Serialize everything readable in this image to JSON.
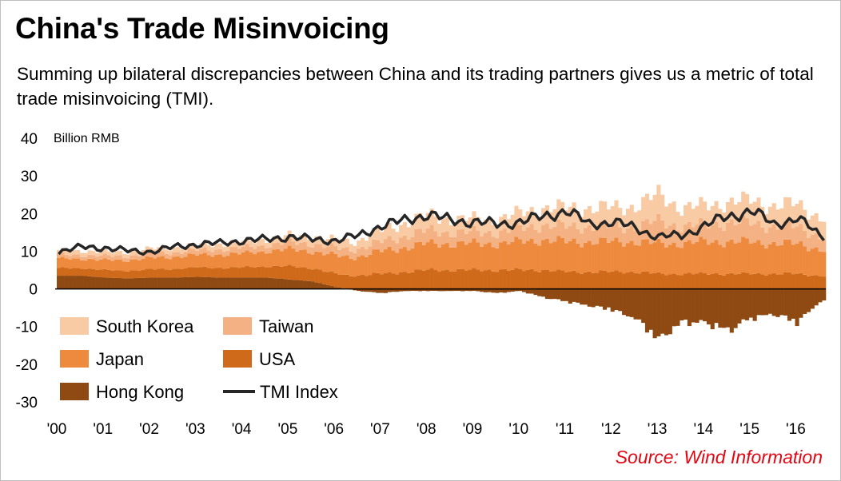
{
  "header": {
    "title": "China's Trade Misinvoicing",
    "subtitle": "Summing up bilateral discrepancies between China and its trading partners gives us a metric of total trade misinvoicing (TMI)."
  },
  "source": "Source: Wind Information",
  "colors": {
    "south_korea": "#f8cba5",
    "taiwan": "#f4b183",
    "japan": "#ed8a3d",
    "usa": "#cf6a1a",
    "hong_kong": "#8e4a12",
    "tmi": "#262626",
    "source": "#e30613"
  },
  "chart_data": {
    "type": "bar",
    "stacked": true,
    "unit_label": "Billion RMB",
    "ylim": [
      -30,
      40
    ],
    "yticks": [
      40,
      30,
      20,
      10,
      0,
      -10,
      -20,
      -30
    ],
    "x_tick_labels": [
      "'00",
      "'01",
      "'02",
      "'03",
      "'04",
      "'05",
      "'06",
      "'07",
      "'08",
      "'09",
      "'10",
      "'11",
      "'12",
      "'13",
      "'14",
      "'15",
      "'16"
    ],
    "legend_position": "lower-left",
    "x": [
      "2000",
      "2000.5",
      "2001",
      "2001.5",
      "2002",
      "2002.5",
      "2003",
      "2003.5",
      "2004",
      "2004.5",
      "2005",
      "2005.5",
      "2006",
      "2006.5",
      "2007",
      "2007.5",
      "2008",
      "2008.5",
      "2009",
      "2009.5",
      "2010",
      "2010.5",
      "2011",
      "2011.5",
      "2012",
      "2012.5",
      "2013",
      "2013.5",
      "2014",
      "2014.5",
      "2015",
      "2015.5",
      "2016",
      "2016.5"
    ],
    "series": [
      {
        "name": "South Korea",
        "values": [
          1,
          1.2,
          1,
          1.1,
          1.2,
          1.3,
          1.3,
          1.5,
          1.5,
          1.6,
          1.8,
          2,
          2,
          2.2,
          3,
          3.5,
          4,
          3.5,
          3.5,
          3.5,
          4,
          4.5,
          5,
          5,
          5,
          5.5,
          7,
          5,
          5,
          5.5,
          6,
          5.5,
          6,
          5
        ]
      },
      {
        "name": "Taiwan",
        "values": [
          1,
          1,
          1.1,
          1.1,
          1.2,
          1.2,
          1.3,
          1.4,
          1.5,
          1.6,
          1.8,
          2,
          2,
          2.1,
          2.5,
          3,
          3.5,
          3,
          3,
          3,
          3.5,
          4,
          4,
          4,
          4,
          4,
          6,
          4.5,
          4.5,
          5,
          5,
          4.5,
          4.5,
          3.5
        ]
      },
      {
        "name": "Japan",
        "values": [
          2.5,
          2.5,
          2.6,
          2.8,
          3,
          3.2,
          3.3,
          3.5,
          3.7,
          4,
          4.5,
          4.5,
          4.8,
          5,
          6,
          6.5,
          7,
          7,
          7,
          7,
          7.5,
          8,
          8,
          8,
          8,
          8,
          8,
          8,
          8.5,
          8.5,
          8.5,
          8,
          8,
          7
        ]
      },
      {
        "name": "USA",
        "values": [
          2,
          2,
          2,
          2,
          2.2,
          2.3,
          2.5,
          2.6,
          2.7,
          3,
          3.5,
          3.5,
          3.5,
          3.6,
          4,
          4.5,
          5,
          5,
          5,
          5,
          5,
          5,
          4.5,
          4.5,
          4.5,
          4.5,
          4,
          4,
          4,
          4,
          4,
          4,
          4,
          3.5
        ]
      },
      {
        "name": "Hong Kong",
        "values": [
          3.5,
          3.5,
          3,
          2.8,
          3,
          3,
          3.2,
          3,
          3,
          3,
          2.5,
          2,
          0.5,
          -0.5,
          -1,
          -0.5,
          -0.5,
          -0.5,
          -0.5,
          -1,
          -0.5,
          -2,
          -3,
          -4,
          -5,
          -7,
          -12,
          -8,
          -8,
          -10,
          -7,
          -6,
          -8,
          -3
        ]
      },
      {
        "name": "TMI Index",
        "type": "line",
        "values": [
          10,
          11,
          11,
          10,
          10,
          11,
          12,
          12,
          13,
          13,
          14,
          13,
          13,
          14,
          17,
          18,
          20,
          18,
          18,
          17,
          18,
          19,
          21,
          17,
          18,
          16,
          14,
          14,
          17,
          19,
          21,
          17,
          19,
          14
        ]
      }
    ]
  }
}
